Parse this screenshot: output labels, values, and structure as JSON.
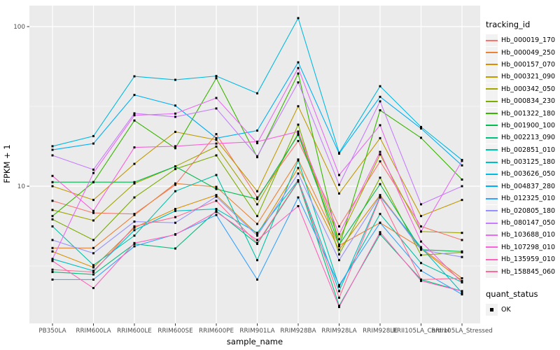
{
  "chart_data": {
    "type": "line",
    "title": "",
    "xlabel": "sample_name",
    "ylabel": "FPKM + 1",
    "y_scale": "log10",
    "y_ticks": [
      10,
      100
    ],
    "y_tick_labels": [
      "10",
      "100"
    ],
    "y_minor_ticks": [
      3.162,
      31.62
    ],
    "grid": true,
    "legend_position": "right",
    "panel_bg": "#EBEBEB",
    "grid_color": "#FFFFFF",
    "axis_text_color": "#4D4D4D",
    "point_color": "#000000",
    "categories": [
      "PB350LA",
      "RRIM600LA",
      "RRIM600LE",
      "RRIM600SE",
      "RRIM600PE",
      "RRIM901LA",
      "RRIM928BA",
      "RRIM928LA",
      "RRIM928LE",
      "RRII105LA_Control",
      "RRII105LA_Stressed"
    ],
    "series": [
      {
        "tracking_id": "Hb_000019_170",
        "color": "#F8766D",
        "values": [
          8.1,
          6.8,
          6.7,
          10.2,
          21.2,
          8.5,
          19.2,
          5.6,
          14.3,
          5.6,
          4.6
        ]
      },
      {
        "tracking_id": "Hb_000049_250",
        "color": "#EB8335",
        "values": [
          4.1,
          4.1,
          6.6,
          10.4,
          9.9,
          5.8,
          14.7,
          4.25,
          5.9,
          4.1,
          2.65
        ]
      },
      {
        "tracking_id": "Hb_000157_070",
        "color": "#D89000",
        "values": [
          3.9,
          3.1,
          5.5,
          7.2,
          8.8,
          5.0,
          13.0,
          4.0,
          8.8,
          4.05,
          2.55
        ]
      },
      {
        "tracking_id": "Hb_000321_090",
        "color": "#C09B00",
        "values": [
          10.0,
          8.2,
          13.8,
          21.9,
          19.5,
          9.3,
          31.7,
          9.0,
          20.0,
          6.5,
          8.2
        ]
      },
      {
        "tracking_id": "Hb_000342_050",
        "color": "#A3A500",
        "values": [
          7.1,
          6.1,
          10.4,
          13.3,
          17.7,
          7.7,
          21.4,
          4.65,
          15.8,
          5.2,
          5.1
        ]
      },
      {
        "tracking_id": "Hb_000834_230",
        "color": "#7CAE00",
        "values": [
          6.2,
          4.6,
          8.5,
          12.8,
          15.6,
          6.5,
          24.3,
          3.74,
          11.3,
          3.7,
          3.85
        ]
      },
      {
        "tracking_id": "Hb_001322_180",
        "color": "#39B600",
        "values": [
          6.5,
          10.6,
          25.8,
          17.3,
          47.5,
          15.2,
          50.8,
          4.2,
          29.9,
          20.1,
          11.0
        ]
      },
      {
        "tracking_id": "Hb_001900_100",
        "color": "#00BB4E",
        "values": [
          10.6,
          10.6,
          10.6,
          13.3,
          9.6,
          8.3,
          21.0,
          4.3,
          10.3,
          4.0,
          3.9
        ]
      },
      {
        "tracking_id": "Hb_002213_090",
        "color": "#00BF7D",
        "values": [
          2.9,
          2.8,
          4.35,
          4.07,
          7.0,
          4.35,
          10.7,
          1.78,
          5.0,
          2.6,
          2.2
        ]
      },
      {
        "tracking_id": "Hb_002851_010",
        "color": "#00C1A7",
        "values": [
          5.6,
          3.2,
          4.9,
          9.3,
          11.75,
          3.44,
          14.5,
          2.35,
          6.7,
          3.3,
          2.5
        ]
      },
      {
        "tracking_id": "Hb_003125_180",
        "color": "#00BFC4",
        "values": [
          3.5,
          2.95,
          5.3,
          7.0,
          7.2,
          5.1,
          10.9,
          2.2,
          8.6,
          4.15,
          2.15
        ]
      },
      {
        "tracking_id": "Hb_003626_050",
        "color": "#00BAE0",
        "values": [
          17.8,
          20.6,
          48.8,
          46.4,
          49.0,
          38.2,
          113.0,
          16.2,
          42.3,
          23.5,
          14.6
        ]
      },
      {
        "tracking_id": "Hb_004837_280",
        "color": "#00B0F6",
        "values": [
          16.9,
          18.5,
          37.3,
          32.0,
          20.0,
          22.3,
          59.7,
          16.0,
          36.3,
          23.0,
          13.5
        ]
      },
      {
        "tracking_id": "Hb_012325_010",
        "color": "#35A2FF",
        "values": [
          2.6,
          2.6,
          4.2,
          5.0,
          6.6,
          2.6,
          8.5,
          2.4,
          5.9,
          2.96,
          2.1
        ]
      },
      {
        "tracking_id": "Hb_020805_180",
        "color": "#9590FF",
        "values": [
          4.6,
          3.8,
          6.0,
          5.9,
          8.6,
          4.9,
          12.0,
          3.44,
          8.7,
          4.0,
          3.6
        ]
      },
      {
        "tracking_id": "Hb_080147_050",
        "color": "#C77CFF",
        "values": [
          15.6,
          12.7,
          28.6,
          27.2,
          30.7,
          15.4,
          44.7,
          10.2,
          34.0,
          7.7,
          10.0
        ]
      },
      {
        "tracking_id": "Hb_103688_010",
        "color": "#E76BF3",
        "values": [
          3.5,
          12.1,
          27.8,
          28.5,
          35.7,
          18.6,
          55.0,
          11.75,
          24.1,
          5.2,
          14.4
        ]
      },
      {
        "tracking_id": "Hb_107298_010",
        "color": "#FA62DB",
        "values": [
          11.6,
          7.0,
          17.5,
          17.8,
          18.5,
          19.0,
          22.0,
          5.0,
          16.4,
          4.5,
          2.5
        ]
      },
      {
        "tracking_id": "Hb_135959_010",
        "color": "#FF62BC",
        "values": [
          3.4,
          2.3,
          4.4,
          4.97,
          6.9,
          4.6,
          7.5,
          1.75,
          5.15,
          2.55,
          2.2
        ]
      },
      {
        "tracking_id": "Hb_158845_060",
        "color": "#FF6A98",
        "values": [
          3.0,
          2.9,
          5.6,
          6.4,
          8.1,
          4.4,
          10.8,
          2.0,
          8.5,
          2.6,
          2.65
        ]
      }
    ],
    "legend": {
      "tracking_id_title": "tracking_id",
      "quant_status_title": "quant_status",
      "quant_status_value": "OK"
    }
  }
}
